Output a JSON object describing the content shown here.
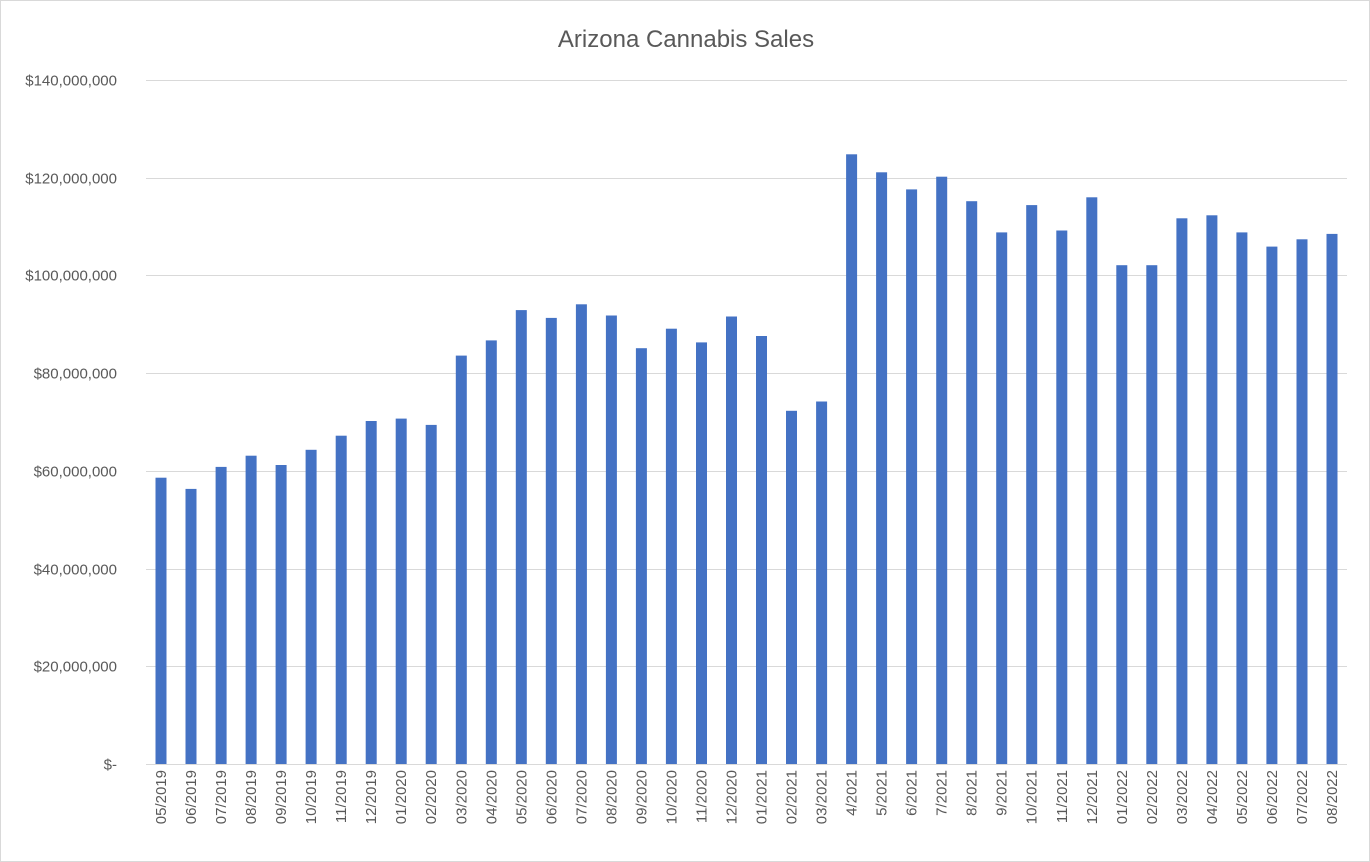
{
  "chart_data": {
    "type": "bar",
    "title": "Arizona Cannabis Sales",
    "xlabel": "",
    "ylabel": "",
    "ylim": [
      0,
      140000000
    ],
    "yticks": [
      0,
      20000000,
      40000000,
      60000000,
      80000000,
      100000000,
      120000000,
      140000000
    ],
    "ytick_labels": [
      "$-",
      "$20,000,000",
      "$40,000,000",
      "$60,000,000",
      "$80,000,000",
      "$100,000,000",
      "$120,000,000",
      "$140,000,000"
    ],
    "grid": true,
    "legend": "none",
    "bar_color": "#4472c4",
    "grid_color": "#d9d9d9",
    "categories": [
      "05/2019",
      "06/2019",
      "07/2019",
      "08/2019",
      "09/2019",
      "10/2019",
      "11/2019",
      "12/2019",
      "01/2020",
      "02/2020",
      "03/2020",
      "04/2020",
      "05/2020",
      "06/2020",
      "07/2020",
      "08/2020",
      "09/2020",
      "10/2020",
      "11/2020",
      "12/2020",
      "01/2021",
      "02/2021",
      "03/2021",
      "4/2021",
      "5/2021",
      "6/2021",
      "7/2021",
      "8/2021",
      "9/2021",
      "10/2021",
      "11/2021",
      "12/2021",
      "01/2022",
      "02/2022",
      "03/2022",
      "04/2022",
      "05/2022",
      "06/2022",
      "07/2022",
      "08/2022"
    ],
    "values": [
      58600000,
      56300000,
      60800000,
      63100000,
      61200000,
      64300000,
      67200000,
      70200000,
      70700000,
      69400000,
      83600000,
      86700000,
      92900000,
      91300000,
      94100000,
      91800000,
      85100000,
      89100000,
      86300000,
      91600000,
      87600000,
      72300000,
      74200000,
      124800000,
      121100000,
      117600000,
      120200000,
      115200000,
      108800000,
      114400000,
      109200000,
      116000000,
      102100000,
      102100000,
      111700000,
      112300000,
      108800000,
      105900000,
      107400000,
      108500000
    ]
  }
}
